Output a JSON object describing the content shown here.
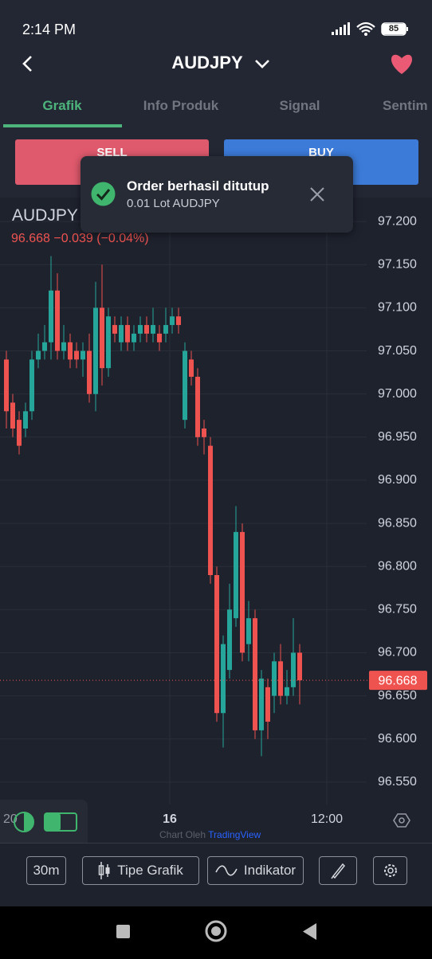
{
  "status_bar": {
    "time": "2:14 PM",
    "battery": "85"
  },
  "header": {
    "title": "AUDJPY"
  },
  "tabs": [
    "Grafik",
    "Info Produk",
    "Signal",
    "Sentim"
  ],
  "buttons": {
    "sell": "SELL",
    "buy": "BUY"
  },
  "toast": {
    "title": "Order berhasil ditutup",
    "subtitle": "0.01 Lot AUDJPY"
  },
  "quote": {
    "symbol": "AUDJPY",
    "price": "96.668",
    "change": "−0.039",
    "change_pct": "(−0.04%)"
  },
  "chart_data": {
    "type": "candlestick",
    "open": [
      97.04,
      96.99,
      96.97,
      96.96,
      96.98,
      97.04,
      97.05,
      97.06,
      97.12,
      97.05,
      97.06,
      97.05,
      97.04,
      97.05,
      97.0,
      97.1,
      97.03,
      97.08,
      97.06,
      97.08,
      97.06,
      97.07,
      97.08,
      97.07,
      97.07,
      97.07,
      97.08,
      97.09,
      96.97,
      97.04,
      97.02,
      96.96,
      96.94,
      96.79,
      96.63,
      96.68,
      96.74,
      96.84,
      96.71,
      96.74,
      96.61,
      96.66,
      96.65,
      96.69,
      96.65,
      96.66,
      96.7
    ],
    "high": [
      97.05,
      97.0,
      96.98,
      96.99,
      97.05,
      97.07,
      97.08,
      97.16,
      97.14,
      97.08,
      97.07,
      97.06,
      97.06,
      97.07,
      97.13,
      97.15,
      97.1,
      97.09,
      97.09,
      97.09,
      97.08,
      97.09,
      97.09,
      97.1,
      97.08,
      97.1,
      97.1,
      97.1,
      97.06,
      97.05,
      97.03,
      96.97,
      96.95,
      96.8,
      96.72,
      96.78,
      96.87,
      96.85,
      96.76,
      96.75,
      96.68,
      96.67,
      96.7,
      96.71,
      96.68,
      96.74,
      96.71
    ],
    "low": [
      96.96,
      96.95,
      96.93,
      96.95,
      96.97,
      97.03,
      97.04,
      97.04,
      97.04,
      97.04,
      97.03,
      97.03,
      97.02,
      96.99,
      96.98,
      97.01,
      97.02,
      97.06,
      97.05,
      97.05,
      97.05,
      97.06,
      97.06,
      97.06,
      97.05,
      97.06,
      97.07,
      97.07,
      96.96,
      97.01,
      96.94,
      96.93,
      96.78,
      96.62,
      96.59,
      96.67,
      96.73,
      96.69,
      96.69,
      96.6,
      96.58,
      96.6,
      96.63,
      96.64,
      96.64,
      96.65,
      96.64
    ],
    "close": [
      96.98,
      96.96,
      96.94,
      96.98,
      97.04,
      97.05,
      97.06,
      97.12,
      97.05,
      97.06,
      97.04,
      97.04,
      97.05,
      97.0,
      97.1,
      97.03,
      97.09,
      97.07,
      97.08,
      97.06,
      97.07,
      97.08,
      97.07,
      97.08,
      97.06,
      97.08,
      97.09,
      97.08,
      97.05,
      97.02,
      96.95,
      96.95,
      96.79,
      96.63,
      96.71,
      96.75,
      96.84,
      96.7,
      96.74,
      96.61,
      96.67,
      96.62,
      96.69,
      96.65,
      96.66,
      96.7,
      96.668
    ],
    "up_color": "#26a69a",
    "down_color": "#ef5350",
    "ylim": [
      96.524,
      97.226
    ],
    "yticks": [
      {
        "value": 97.2,
        "label": "97.200"
      },
      {
        "value": 97.15,
        "label": "97.150"
      },
      {
        "value": 97.1,
        "label": "97.100"
      },
      {
        "value": 97.05,
        "label": "97.050"
      },
      {
        "value": 97.0,
        "label": "97.000"
      },
      {
        "value": 96.95,
        "label": "96.950"
      },
      {
        "value": 96.9,
        "label": "96.900"
      },
      {
        "value": 96.85,
        "label": "96.850"
      },
      {
        "value": 96.8,
        "label": "96.800"
      },
      {
        "value": 96.75,
        "label": "96.750"
      },
      {
        "value": 96.7,
        "label": "96.700"
      },
      {
        "value": 96.65,
        "label": "96.650"
      },
      {
        "value": 96.6,
        "label": "96.600"
      },
      {
        "value": 96.55,
        "label": "96.550"
      }
    ],
    "last_price": 96.668,
    "x_labels": [
      "20",
      "16",
      "12:00"
    ],
    "grid": true
  },
  "credit": {
    "prefix": "Chart Oleh",
    "brand": "TradingView"
  },
  "toolbar": {
    "interval": "30m",
    "chart_type": "Tipe Grafik",
    "indicator": "Indikator"
  }
}
